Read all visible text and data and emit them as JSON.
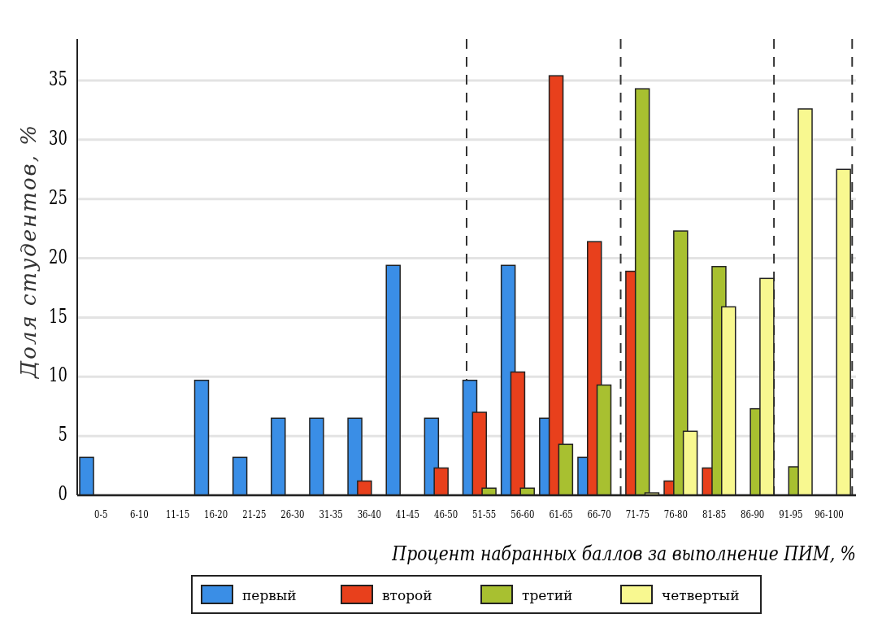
{
  "chart_data": {
    "type": "bar",
    "xlabel": "Процент набранных баллов за выполнение ПИМ, %",
    "ylabel": "Доля студентов, %",
    "categories": [
      "0-5",
      "6-10",
      "11-15",
      "16-20",
      "21-25",
      "26-30",
      "31-35",
      "36-40",
      "41-45",
      "46-50",
      "51-55",
      "56-60",
      "61-65",
      "66-70",
      "71-75",
      "76-80",
      "81-85",
      "86-90",
      "91-95",
      "96-100"
    ],
    "series": [
      {
        "name": "первый",
        "color": "#3a8ee6",
        "values": [
          3.2,
          0,
          0,
          9.7,
          3.2,
          6.5,
          6.5,
          6.5,
          19.4,
          6.5,
          9.7,
          19.4,
          6.5,
          3.2,
          0,
          0,
          0,
          0,
          0,
          0
        ]
      },
      {
        "name": "второй",
        "color": "#e8401c",
        "values": [
          0,
          0,
          0,
          0,
          0,
          0,
          0,
          1.2,
          0,
          2.3,
          7.0,
          10.4,
          35.4,
          21.4,
          18.9,
          1.2,
          2.3,
          0,
          0,
          0
        ]
      },
      {
        "name": "третий",
        "color": "#a8c030",
        "values": [
          0,
          0,
          0,
          0,
          0,
          0,
          0,
          0,
          0,
          0,
          0.6,
          0.6,
          4.3,
          9.3,
          34.3,
          22.3,
          19.3,
          7.3,
          2.4,
          0
        ]
      },
      {
        "name": "четвертый",
        "color": "#f8f890",
        "values": [
          0,
          0,
          0,
          0,
          0,
          0,
          0,
          0,
          0,
          0,
          0,
          0,
          0,
          0,
          0.2,
          5.4,
          15.9,
          18.3,
          32.6,
          27.5
        ]
      }
    ],
    "ylim": [
      0,
      38.5
    ],
    "yticks": [
      0,
      5,
      10,
      15,
      20,
      25,
      30,
      35
    ],
    "grid": "y",
    "legend": "bottom"
  }
}
